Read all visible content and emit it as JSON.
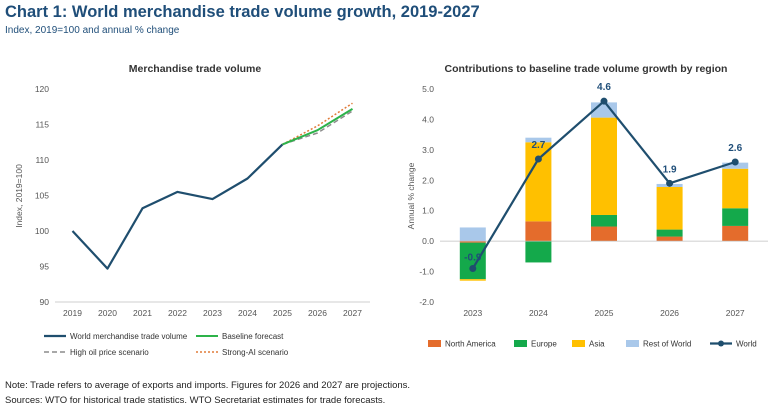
{
  "header": {
    "title": "Chart 1: World merchandise trade volume growth, 2019-2027",
    "subtitle": "Index, 2019=100 and annual % change"
  },
  "notes": {
    "line1": "Note: Trade refers to average of exports and imports. Figures for 2026 and 2027 are projections.",
    "line2": "Sources: WTO for historical trade statistics. WTO Secretariat estimates for trade forecasts."
  },
  "colors": {
    "world": "#1f4e6e",
    "baseline": "#2db34a",
    "high_oil": "#8c8c8c",
    "strong_ai": "#e07b39",
    "north_america": "#e46c2c",
    "europe": "#14a94b",
    "asia": "#ffc000",
    "rest_of_world": "#a9c8ea"
  },
  "chart_data": [
    {
      "type": "line",
      "title": "Merchandise trade volume",
      "ylabel": "Index, 2019=100",
      "xlabel": "",
      "x": [
        "2019",
        "2020",
        "2021",
        "2022",
        "2023",
        "2024",
        "2025",
        "2026",
        "2027"
      ],
      "ylim": [
        90,
        120
      ],
      "yticks": [
        90,
        95,
        100,
        105,
        110,
        115,
        120
      ],
      "grid": false,
      "legend": "bottom",
      "series": [
        {
          "name": "World merchandise trade volume",
          "x": [
            "2019",
            "2020",
            "2021",
            "2022",
            "2023",
            "2024",
            "2025"
          ],
          "values": [
            100,
            94.7,
            103.2,
            105.5,
            104.5,
            107.4,
            112.2
          ],
          "style": "solid"
        },
        {
          "name": "Baseline forecast",
          "x": [
            "2025",
            "2026",
            "2027"
          ],
          "values": [
            112.2,
            114.2,
            117.2
          ],
          "style": "solid"
        },
        {
          "name": "High oil price scenario",
          "x": [
            "2025",
            "2026",
            "2027"
          ],
          "values": [
            112.2,
            113.8,
            116.9
          ],
          "style": "dashed"
        },
        {
          "name": "Strong-AI scenario",
          "x": [
            "2025",
            "2026",
            "2027"
          ],
          "values": [
            112.2,
            114.8,
            118.0
          ],
          "style": "dotted"
        }
      ]
    },
    {
      "type": "bar",
      "title": "Contributions to baseline trade volume growth by region",
      "ylabel": "Annual % change",
      "xlabel": "",
      "categories": [
        "2023",
        "2024",
        "2025",
        "2026",
        "2027"
      ],
      "ylim": [
        -2.0,
        5.0
      ],
      "yticks": [
        "-2.0",
        "-1.0",
        "0.0",
        "1.0",
        "2.0",
        "3.0",
        "4.0",
        "5.0"
      ],
      "grid": false,
      "legend": "bottom",
      "series": [
        {
          "name": "North America",
          "values": [
            -0.05,
            0.65,
            0.48,
            0.15,
            0.5
          ]
        },
        {
          "name": "Europe",
          "values": [
            -1.2,
            -0.7,
            0.38,
            0.23,
            0.58
          ]
        },
        {
          "name": "Asia",
          "values": [
            -0.05,
            2.6,
            3.2,
            1.4,
            1.3
          ]
        },
        {
          "name": "Rest of World",
          "values": [
            0.45,
            0.15,
            0.5,
            0.1,
            0.2
          ]
        }
      ],
      "line_series": {
        "name": "World",
        "values": [
          -0.9,
          2.7,
          4.6,
          1.9,
          2.6
        ],
        "labels": [
          "-0.9",
          "2.7",
          "4.6",
          "1.9",
          "2.6"
        ]
      }
    }
  ]
}
